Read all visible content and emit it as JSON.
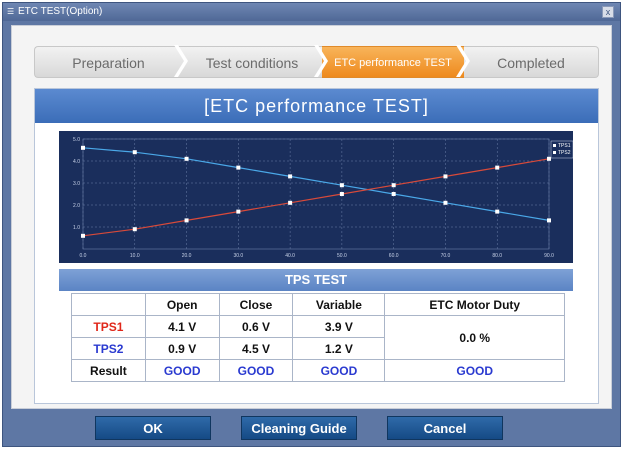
{
  "window": {
    "title": "ETC TEST(Option)",
    "close_glyph": "x"
  },
  "steps": [
    {
      "label": "Preparation"
    },
    {
      "label": "Test conditions"
    },
    {
      "label": "ETC performance TEST"
    },
    {
      "label": "Completed"
    }
  ],
  "panel": {
    "title": "[ETC performance TEST]"
  },
  "chart_data": {
    "type": "line",
    "x": [
      0,
      10,
      20,
      30,
      40,
      50,
      60,
      70,
      80,
      90
    ],
    "x_ticks": [
      "0.0",
      "10.0",
      "20.0",
      "30.0",
      "40.0",
      "50.0",
      "60.0",
      "70.0",
      "80.0",
      "90.0"
    ],
    "y_ticks": [
      "1.0",
      "2.0",
      "3.0",
      "4.0",
      "5.0"
    ],
    "ylim": [
      0,
      5
    ],
    "xlim": [
      0,
      90
    ],
    "grid": true,
    "legend_position": "top-right",
    "series": [
      {
        "name": "TPS1",
        "color": "#4aa8e8",
        "values": [
          4.6,
          4.4,
          4.1,
          3.7,
          3.3,
          2.9,
          2.5,
          2.1,
          1.7,
          1.3
        ]
      },
      {
        "name": "TPS2",
        "color": "#d84a3a",
        "values": [
          0.6,
          0.9,
          1.3,
          1.7,
          2.1,
          2.5,
          2.9,
          3.3,
          3.7,
          4.1
        ]
      }
    ]
  },
  "table": {
    "title": "TPS TEST",
    "headers": [
      "Open",
      "Close",
      "Variable",
      "ETC Motor Duty"
    ],
    "rows": [
      {
        "label": "TPS1",
        "open": "4.1 V",
        "close": "0.6 V",
        "variable": "3.9 V"
      },
      {
        "label": "TPS2",
        "open": "0.9 V",
        "close": "4.5 V",
        "variable": "1.2 V"
      }
    ],
    "motor_duty": "0.0 %",
    "result": {
      "label": "Result",
      "open": "GOOD",
      "close": "GOOD",
      "variable": "GOOD",
      "duty": "GOOD"
    }
  },
  "buttons": {
    "ok": "OK",
    "guide": "Cleaning Guide",
    "cancel": "Cancel"
  },
  "colors": {
    "active_step": "#ee8a1e",
    "header_blue": "#3b6db8",
    "button_blue": "#1f5a98"
  }
}
